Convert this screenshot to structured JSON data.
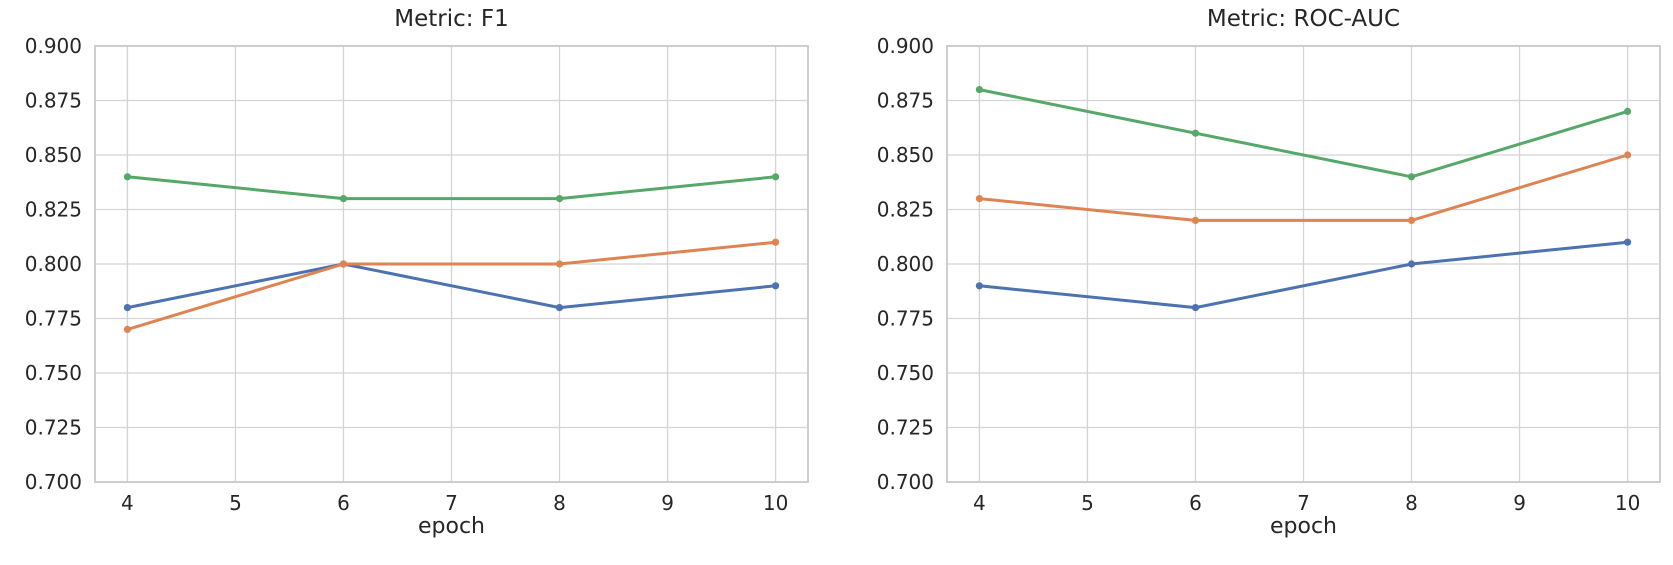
{
  "page": {
    "background": "#ffffff",
    "text_color": "#262626",
    "grid_color": "#d4d4d4",
    "spine_color": "#c9c9c9"
  },
  "chart_data": [
    {
      "type": "line",
      "title": "Metric: F1",
      "xlabel": "epoch",
      "ylabel": "",
      "x": [
        4,
        6,
        8,
        10
      ],
      "series": [
        {
          "name": "blue",
          "color": "#4c72b0",
          "values": [
            0.78,
            0.8,
            0.78,
            0.79
          ]
        },
        {
          "name": "orange",
          "color": "#dd8452",
          "values": [
            0.77,
            0.8,
            0.8,
            0.81
          ]
        },
        {
          "name": "green",
          "color": "#55a868",
          "values": [
            0.84,
            0.83,
            0.83,
            0.84
          ]
        }
      ],
      "xticks": [
        "4",
        "5",
        "6",
        "7",
        "8",
        "9",
        "10"
      ],
      "yticks": [
        "0.700",
        "0.725",
        "0.750",
        "0.775",
        "0.800",
        "0.825",
        "0.850",
        "0.875",
        "0.900"
      ],
      "xlim": [
        3.7,
        10.3
      ],
      "ylim": [
        0.7,
        0.9
      ],
      "grid": true,
      "legend": false,
      "marker": "circle"
    },
    {
      "type": "line",
      "title": "Metric: ROC-AUC",
      "xlabel": "epoch",
      "ylabel": "",
      "x": [
        4,
        6,
        8,
        10
      ],
      "series": [
        {
          "name": "blue",
          "color": "#4c72b0",
          "values": [
            0.79,
            0.78,
            0.8,
            0.81
          ]
        },
        {
          "name": "orange",
          "color": "#dd8452",
          "values": [
            0.83,
            0.82,
            0.82,
            0.85
          ]
        },
        {
          "name": "green",
          "color": "#55a868",
          "values": [
            0.88,
            0.86,
            0.84,
            0.87
          ]
        }
      ],
      "xticks": [
        "4",
        "5",
        "6",
        "7",
        "8",
        "9",
        "10"
      ],
      "yticks": [
        "0.700",
        "0.725",
        "0.750",
        "0.775",
        "0.800",
        "0.825",
        "0.850",
        "0.875",
        "0.900"
      ],
      "xlim": [
        3.7,
        10.3
      ],
      "ylim": [
        0.7,
        0.9
      ],
      "grid": true,
      "legend": false,
      "marker": "circle"
    }
  ]
}
